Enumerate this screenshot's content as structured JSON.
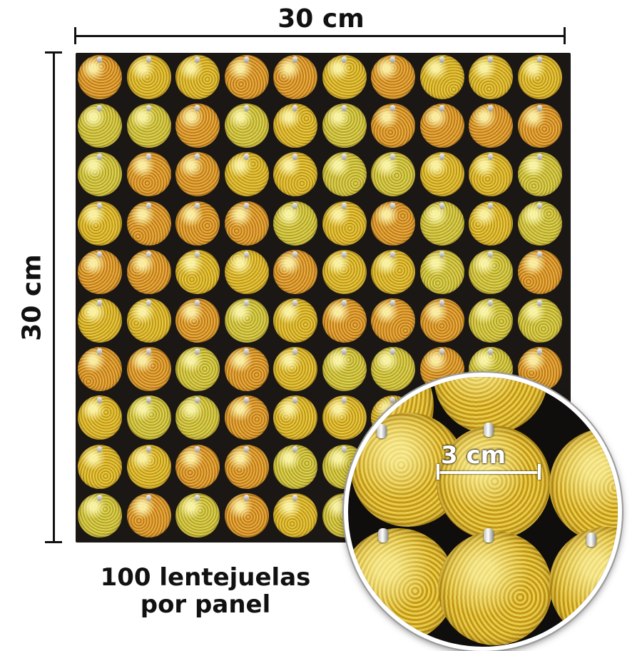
{
  "dimensions": {
    "width_label": "30 cm",
    "height_label": "30 cm",
    "sequin_label": "3 cm"
  },
  "caption": {
    "line1": "100 lentejuelas",
    "line2": "por panel"
  },
  "panel": {
    "rows": 10,
    "columns": 10,
    "sequin_count": 100
  },
  "colors": {
    "sequin_gold": "#d9b21c",
    "sequin_orange": "#d98a1c",
    "sequin_green_tint": "#c9c234",
    "backing": "#1a1714",
    "ink": "#111111"
  }
}
